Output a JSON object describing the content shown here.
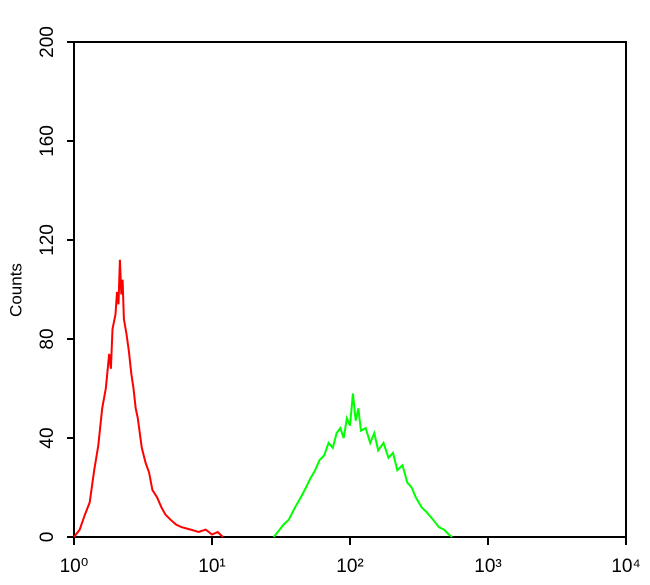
{
  "chart_data": {
    "type": "line",
    "y_label": "Counts",
    "xscale": "log",
    "xlim": [
      1,
      10000
    ],
    "ylim": [
      0,
      200
    ],
    "xticks": [
      {
        "value": 1,
        "label": "10⁰"
      },
      {
        "value": 10,
        "label": "10¹"
      },
      {
        "value": 100,
        "label": "10²"
      },
      {
        "value": 1000,
        "label": "10³"
      },
      {
        "value": 10000,
        "label": "10⁴"
      }
    ],
    "yticks": [
      0,
      40,
      80,
      120,
      160,
      200
    ],
    "series": [
      {
        "color": "#ff0000",
        "x": [
          1.0,
          1.1,
          1.2,
          1.3,
          1.4,
          1.5,
          1.6,
          1.7,
          1.8,
          1.85,
          1.9,
          2.0,
          2.05,
          2.1,
          2.15,
          2.2,
          2.25,
          2.3,
          2.4,
          2.5,
          2.6,
          2.7,
          2.8,
          2.9,
          3.0,
          3.1,
          3.3,
          3.5,
          3.7,
          4.0,
          4.3,
          4.6,
          5.0,
          5.5,
          6.0,
          7.0,
          8.0,
          9.0,
          10.0,
          11.0,
          12.0
        ],
        "values": [
          0,
          3,
          9,
          14,
          27,
          37,
          52,
          60,
          74,
          68,
          84,
          90,
          99,
          94,
          112,
          98,
          104,
          88,
          82,
          75,
          66,
          60,
          52,
          48,
          42,
          36,
          30,
          26,
          19,
          16,
          12,
          9,
          7,
          5,
          4,
          3,
          2,
          3,
          1,
          2,
          0
        ]
      },
      {
        "color": "#00ff00",
        "x": [
          28,
          30,
          33,
          36,
          40,
          44,
          48,
          52,
          56,
          60,
          65,
          70,
          75,
          80,
          85,
          90,
          95,
          100,
          105,
          110,
          115,
          120,
          130,
          140,
          150,
          160,
          175,
          190,
          205,
          220,
          240,
          260,
          280,
          300,
          330,
          360,
          400,
          440,
          480,
          520,
          550
        ],
        "values": [
          0,
          2,
          5,
          7,
          12,
          16,
          20,
          24,
          27,
          31,
          33,
          38,
          36,
          42,
          44,
          40,
          48,
          45,
          58,
          47,
          52,
          43,
          44,
          38,
          42,
          35,
          38,
          32,
          34,
          27,
          29,
          22,
          20,
          16,
          12,
          10,
          7,
          4,
          3,
          1,
          0
        ]
      }
    ]
  }
}
